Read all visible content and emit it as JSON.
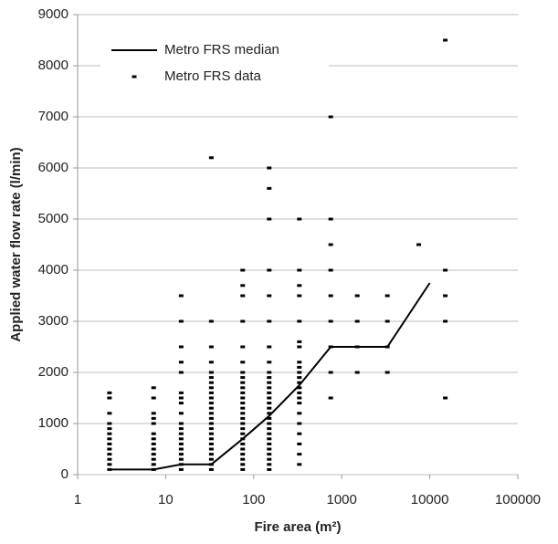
{
  "chart_data": {
    "type": "scatter",
    "x_label": "Fire area (m²)",
    "y_label": "Applied water flow rate (l/min)",
    "xlog": true,
    "xlim": [
      1,
      100000
    ],
    "xticks": [
      1,
      10,
      100,
      1000,
      10000,
      100000
    ],
    "ylim": [
      0,
      9000
    ],
    "yticks": [
      0,
      1000,
      2000,
      3000,
      4000,
      5000,
      6000,
      7000,
      8000,
      9000
    ],
    "grid": true,
    "legend": "top-left",
    "series": [
      {
        "name": "Metro FRS median",
        "type": "line",
        "color": "#000000",
        "x": [
          2.3,
          7.3,
          15,
          33,
          75,
          150,
          330,
          750,
          3300,
          10000
        ],
        "values": [
          100,
          100,
          200,
          200,
          700,
          1150,
          1750,
          2500,
          2500,
          3750
        ]
      },
      {
        "name": "Metro FRS data",
        "type": "scatter",
        "color": "#000000",
        "x": [
          2.3,
          2.3,
          2.3,
          2.3,
          2.3,
          2.3,
          2.3,
          2.3,
          2.3,
          2.3,
          2.3,
          2.3,
          2.3,
          7.3,
          7.3,
          7.3,
          7.3,
          7.3,
          7.3,
          7.3,
          7.3,
          7.3,
          7.3,
          7.3,
          7.3,
          7.3,
          15,
          15,
          15,
          15,
          15,
          15,
          15,
          15,
          15,
          15,
          15,
          15,
          15,
          15,
          15,
          15,
          15,
          15,
          15,
          33,
          33,
          33,
          33,
          33,
          33,
          33,
          33,
          33,
          33,
          33,
          33,
          33,
          33,
          33,
          33,
          33,
          33,
          33,
          33,
          33,
          33,
          33,
          33,
          75,
          75,
          75,
          75,
          75,
          75,
          75,
          75,
          75,
          75,
          75,
          75,
          75,
          75,
          75,
          75,
          75,
          75,
          75,
          75,
          75,
          75,
          75,
          75,
          75,
          75,
          150,
          150,
          150,
          150,
          150,
          150,
          150,
          150,
          150,
          150,
          150,
          150,
          150,
          150,
          150,
          150,
          150,
          150,
          150,
          150,
          150,
          150,
          150,
          150,
          150,
          150,
          150,
          150,
          330,
          330,
          330,
          330,
          330,
          330,
          330,
          330,
          330,
          330,
          330,
          330,
          330,
          330,
          330,
          330,
          330,
          330,
          330,
          330,
          330,
          330,
          750,
          750,
          750,
          750,
          750,
          750,
          750,
          750,
          750,
          1500,
          1500,
          1500,
          1500,
          3300,
          3300,
          3300,
          3300,
          7500,
          15000,
          15000,
          15000,
          15000,
          15000
        ],
        "values": [
          100,
          200,
          300,
          400,
          500,
          600,
          700,
          800,
          900,
          1000,
          1200,
          1500,
          1600,
          100,
          200,
          300,
          400,
          500,
          600,
          700,
          800,
          1000,
          1100,
          1200,
          1500,
          1700,
          100,
          200,
          300,
          400,
          500,
          600,
          700,
          800,
          1000,
          1200,
          1500,
          1600,
          2000,
          2200,
          3000,
          3500,
          2500,
          1400,
          900,
          100,
          200,
          300,
          400,
          500,
          600,
          700,
          800,
          900,
          1000,
          1100,
          1200,
          1300,
          1400,
          1500,
          1600,
          1700,
          1800,
          1900,
          2000,
          2200,
          2500,
          3000,
          6200,
          100,
          200,
          300,
          400,
          500,
          600,
          700,
          800,
          900,
          1000,
          1100,
          1200,
          1300,
          1400,
          1500,
          1600,
          1700,
          1800,
          1900,
          2000,
          2200,
          2500,
          3000,
          3500,
          3700,
          4000,
          100,
          200,
          300,
          400,
          500,
          600,
          700,
          800,
          900,
          1000,
          1100,
          1200,
          1300,
          1400,
          1500,
          1600,
          1700,
          1800,
          1900,
          2000,
          2200,
          2500,
          3000,
          3500,
          4000,
          5000,
          5600,
          6000,
          200,
          400,
          600,
          800,
          1000,
          1200,
          1400,
          1500,
          1600,
          1700,
          1800,
          1900,
          2000,
          2100,
          2200,
          2500,
          2600,
          3000,
          3500,
          3700,
          4000,
          5000,
          1500,
          2000,
          2500,
          3000,
          3500,
          4000,
          4500,
          5000,
          7000,
          2000,
          2500,
          3000,
          3500,
          2000,
          2500,
          3000,
          3500,
          4500,
          1500,
          3000,
          3500,
          4000,
          8500
        ]
      }
    ]
  }
}
